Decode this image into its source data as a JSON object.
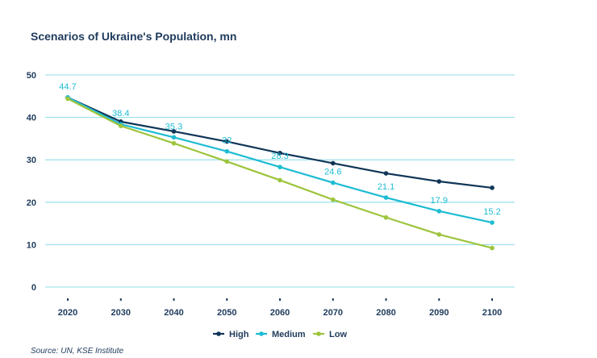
{
  "chart_data": {
    "type": "line",
    "title": "Scenarios of Ukraine's Population, mn",
    "xlabel": "",
    "ylabel": "",
    "x": [
      2020,
      2030,
      2040,
      2050,
      2060,
      2070,
      2080,
      2090,
      2100
    ],
    "ylim": [
      0,
      50
    ],
    "yticks": [
      0,
      10,
      20,
      30,
      40,
      50
    ],
    "grid": true,
    "legend_position": "bottom-center",
    "series": [
      {
        "name": "High",
        "color": "#0f3557",
        "values": [
          44.7,
          39.0,
          36.7,
          34.3,
          31.6,
          29.2,
          26.8,
          24.9,
          23.4
        ]
      },
      {
        "name": "Medium",
        "color": "#1ebcd3",
        "values": [
          44.7,
          38.4,
          35.3,
          32.0,
          28.3,
          24.6,
          21.1,
          17.9,
          15.2
        ],
        "data_labels": [
          "44.7",
          "38.4",
          "35.3",
          "32",
          "28.3",
          "24.6",
          "21.1",
          "17.9",
          "15.2"
        ]
      },
      {
        "name": "Low",
        "color": "#9dc43c",
        "values": [
          44.4,
          38.0,
          33.9,
          29.6,
          25.2,
          20.6,
          16.4,
          12.4,
          9.2
        ]
      }
    ]
  },
  "source": "Source: UN, KSE Institute"
}
